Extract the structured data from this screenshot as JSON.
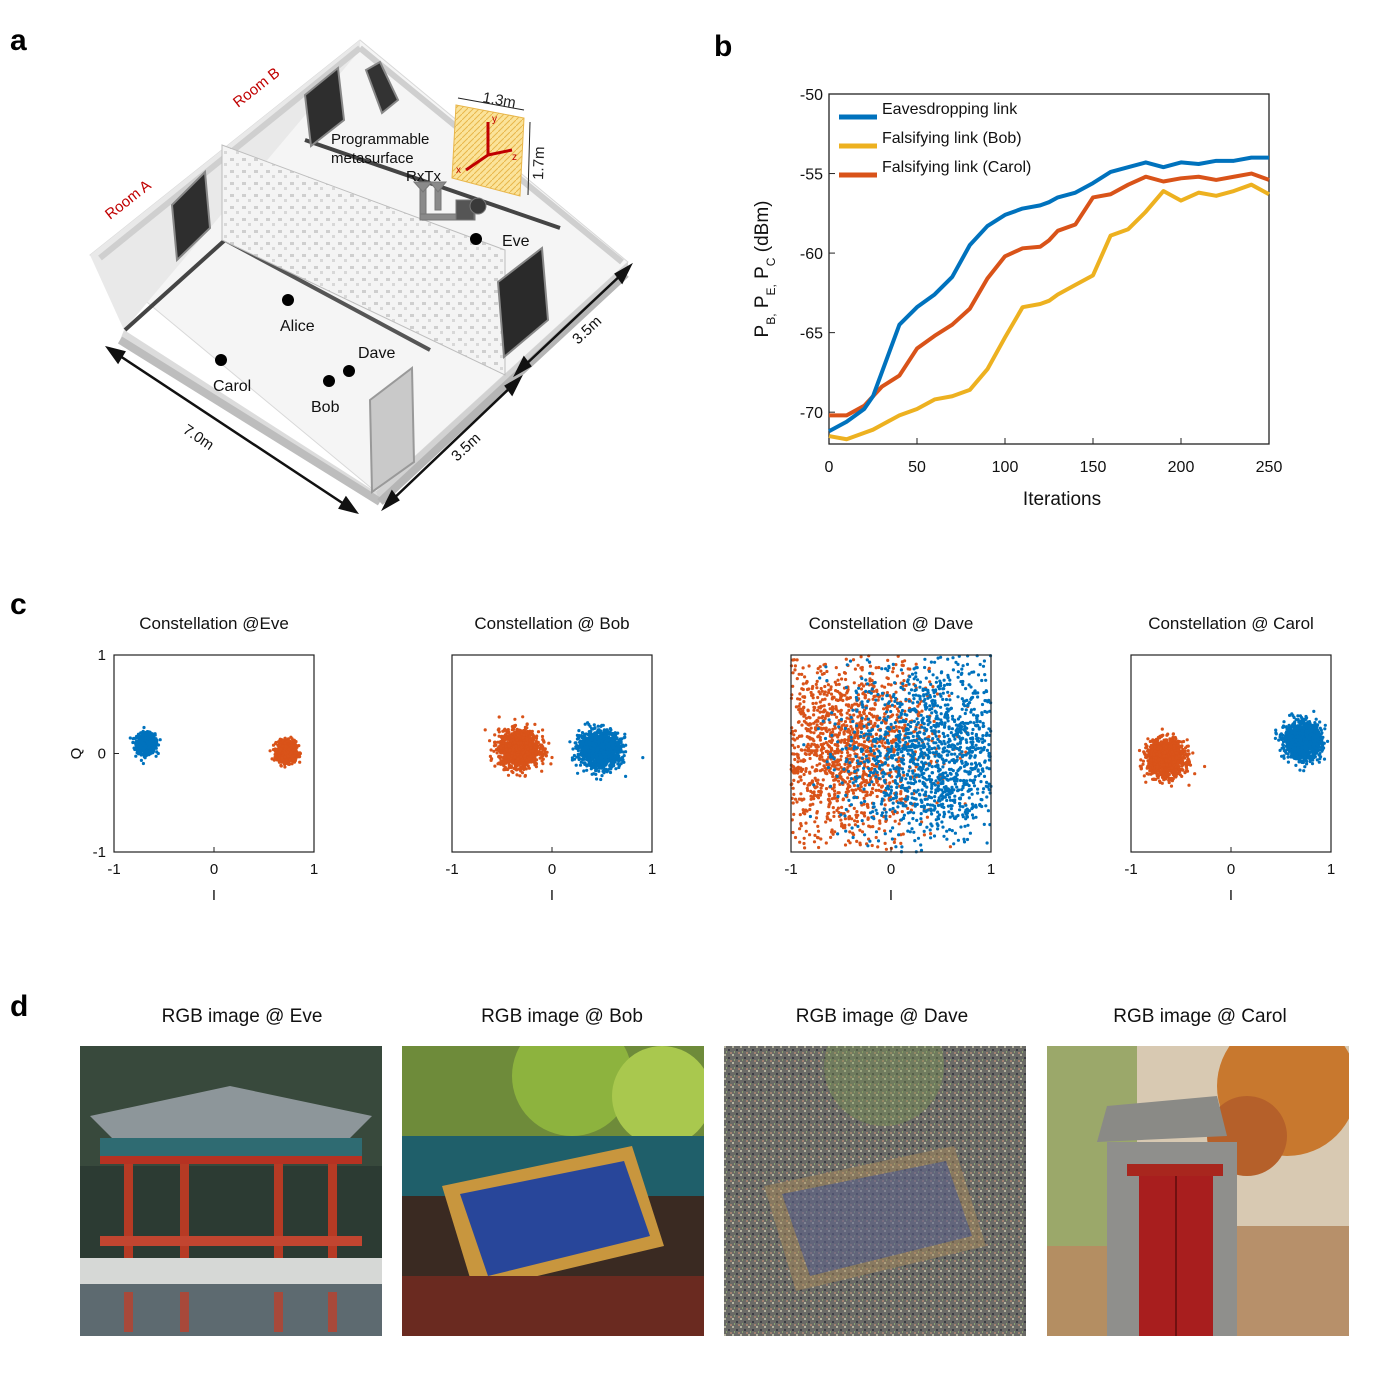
{
  "panels": {
    "a": "a",
    "b": "b",
    "c": "c",
    "d": "d"
  },
  "scene": {
    "room_a": "Room A",
    "room_b": "Room B",
    "metasurface_label_1": "Programmable",
    "metasurface_label_2": "metasurface",
    "rx_tx": "RxTx",
    "dim_width": "1.3m",
    "dim_height": "1.7m",
    "axis_x": "x",
    "axis_y": "y",
    "axis_z": "z",
    "dim_length": "7.0m",
    "dim_depth_front": "3.5m",
    "dim_depth_back": "3.5m",
    "users": [
      {
        "name": "Eve"
      },
      {
        "name": "Alice"
      },
      {
        "name": "Dave"
      },
      {
        "name": "Carol"
      },
      {
        "name": "Bob"
      }
    ]
  },
  "chart_data": [
    {
      "type": "line",
      "xlabel": "Iterations",
      "ylabel": "P",
      "ylabel_subs": [
        "B,",
        "E,",
        "C"
      ],
      "ylabel_sep": [
        " P",
        " P"
      ],
      "ylabel_unit": " (dBm)",
      "xlim": [
        0,
        250
      ],
      "ylim": [
        -72,
        -50
      ],
      "xticks": [
        0,
        50,
        100,
        150,
        200,
        250
      ],
      "yticks": [
        -50,
        -55,
        -60,
        -65,
        -70
      ],
      "legend_position": "top-left",
      "x": [
        0,
        10,
        20,
        25,
        30,
        40,
        50,
        60,
        70,
        80,
        90,
        100,
        110,
        120,
        125,
        130,
        140,
        150,
        160,
        170,
        180,
        190,
        200,
        210,
        220,
        230,
        240,
        250
      ],
      "series": [
        {
          "name": "Eavesdropping link",
          "color": "#0072BD",
          "values": [
            -71.2,
            -70.6,
            -69.8,
            -69.0,
            -67.5,
            -64.5,
            -63.4,
            -62.6,
            -61.5,
            -59.5,
            -58.3,
            -57.6,
            -57.2,
            -57.0,
            -56.8,
            -56.5,
            -56.2,
            -55.6,
            -54.9,
            -54.6,
            -54.3,
            -54.6,
            -54.3,
            -54.4,
            -54.2,
            -54.2,
            -54.0,
            -54.0
          ]
        },
        {
          "name": "Falsifying link (Bob)",
          "color": "#EDB120",
          "values": [
            -71.5,
            -71.7,
            -71.3,
            -71.1,
            -70.8,
            -70.2,
            -69.8,
            -69.2,
            -69.0,
            -68.6,
            -67.3,
            -65.3,
            -63.4,
            -63.2,
            -63.0,
            -62.6,
            -62.0,
            -61.4,
            -58.9,
            -58.5,
            -57.4,
            -56.1,
            -56.7,
            -56.2,
            -56.4,
            -56.1,
            -55.7,
            -56.3
          ]
        },
        {
          "name": "Falsifying link (Carol)",
          "color": "#D95319",
          "values": [
            -70.2,
            -70.2,
            -69.6,
            -69.0,
            -68.4,
            -67.7,
            -66.0,
            -65.2,
            -64.5,
            -63.5,
            -61.6,
            -60.2,
            -59.7,
            -59.6,
            -59.2,
            -58.6,
            -58.2,
            -56.5,
            -56.3,
            -55.7,
            -55.2,
            -55.5,
            -55.3,
            -55.2,
            -55.4,
            -55.2,
            -55.0,
            -55.4
          ]
        }
      ]
    },
    {
      "type": "scatter",
      "title": "Constellation @Eve",
      "xlabel": "I",
      "ylabel": "Q",
      "xlim": [
        -1,
        1
      ],
      "ylim": [
        -1,
        1
      ],
      "xticks": [
        -1,
        0,
        1
      ],
      "yticks": [
        -1,
        0,
        1
      ],
      "series": [
        {
          "name": "",
          "color": "#0072BD",
          "center": [
            -0.68,
            0.1
          ],
          "spread": [
            0.045,
            0.05
          ],
          "count": 900
        },
        {
          "name": "",
          "color": "#D95319",
          "center": [
            0.73,
            0.02
          ],
          "spread": [
            0.045,
            0.05
          ],
          "count": 900
        }
      ]
    },
    {
      "type": "scatter",
      "title": "Constellation @ Bob",
      "xlabel": "I",
      "ylabel": "",
      "xlim": [
        -1,
        1
      ],
      "ylim": [
        -1,
        1
      ],
      "xticks": [
        -1,
        0,
        1
      ],
      "yticks": [],
      "series": [
        {
          "name": "",
          "color": "#D95319",
          "center": [
            -0.33,
            0.05
          ],
          "spread": [
            0.1,
            0.09
          ],
          "count": 1400
        },
        {
          "name": "",
          "color": "#0072BD",
          "center": [
            0.48,
            0.04
          ],
          "spread": [
            0.1,
            0.09
          ],
          "count": 1400
        }
      ]
    },
    {
      "type": "scatter",
      "title": "Constellation @ Dave",
      "xlabel": "I",
      "ylabel": "",
      "xlim": [
        -1,
        1
      ],
      "ylim": [
        -1,
        1
      ],
      "xticks": [
        -1,
        0,
        1
      ],
      "yticks": [],
      "series": [
        {
          "name": "",
          "color": "#D95319",
          "center": [
            -0.48,
            0.05
          ],
          "spread": [
            0.45,
            0.48
          ],
          "count": 1600
        },
        {
          "name": "",
          "color": "#0072BD",
          "center": [
            0.45,
            0.0
          ],
          "spread": [
            0.45,
            0.48
          ],
          "count": 1600
        }
      ]
    },
    {
      "type": "scatter",
      "title": "Constellation @ Carol",
      "xlabel": "I",
      "ylabel": "",
      "xlim": [
        -1,
        1
      ],
      "ylim": [
        -1,
        1
      ],
      "xticks": [
        -1,
        0,
        1
      ],
      "yticks": [],
      "series": [
        {
          "name": "",
          "color": "#D95319",
          "center": [
            -0.65,
            -0.05
          ],
          "spread": [
            0.09,
            0.09
          ],
          "count": 1300
        },
        {
          "name": "",
          "color": "#0072BD",
          "center": [
            0.72,
            0.13
          ],
          "spread": [
            0.09,
            0.09
          ],
          "count": 1300
        }
      ]
    }
  ],
  "images": [
    {
      "title": "RGB image @ Eve"
    },
    {
      "title": "RGB image @ Bob"
    },
    {
      "title": "RGB image @ Dave"
    },
    {
      "title": "RGB image @ Carol"
    }
  ]
}
